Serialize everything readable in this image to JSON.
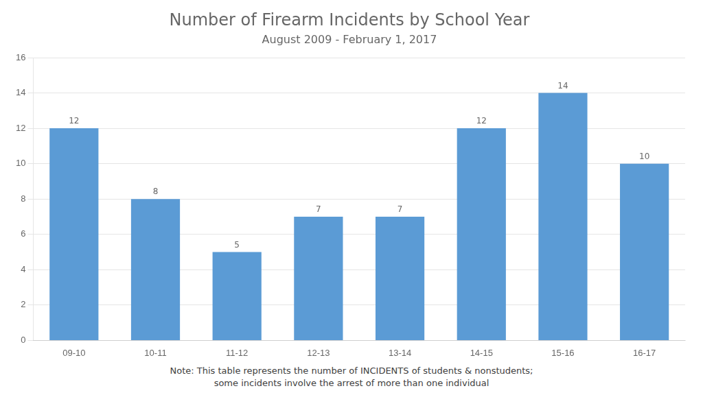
{
  "chart_data": {
    "type": "bar",
    "title": "Number of Firearm Incidents by School Year",
    "subtitle": "August 2009 - February 1, 2017",
    "categories": [
      "09-10",
      "10-11",
      "11-12",
      "12-13",
      "13-14",
      "14-15",
      "15-16",
      "16-17"
    ],
    "values": [
      12,
      8,
      5,
      7,
      7,
      12,
      14,
      10
    ],
    "color": "#5b9bd5",
    "ylim": [
      0,
      16
    ],
    "yticks": [
      0,
      2,
      4,
      6,
      8,
      10,
      12,
      14,
      16
    ],
    "grid": true,
    "data_labels": true,
    "annotations": [
      "Note: This table represents the number of INCIDENTS of students & nonstudents;",
      "some incidents involve the arrest of more than one individual"
    ]
  }
}
